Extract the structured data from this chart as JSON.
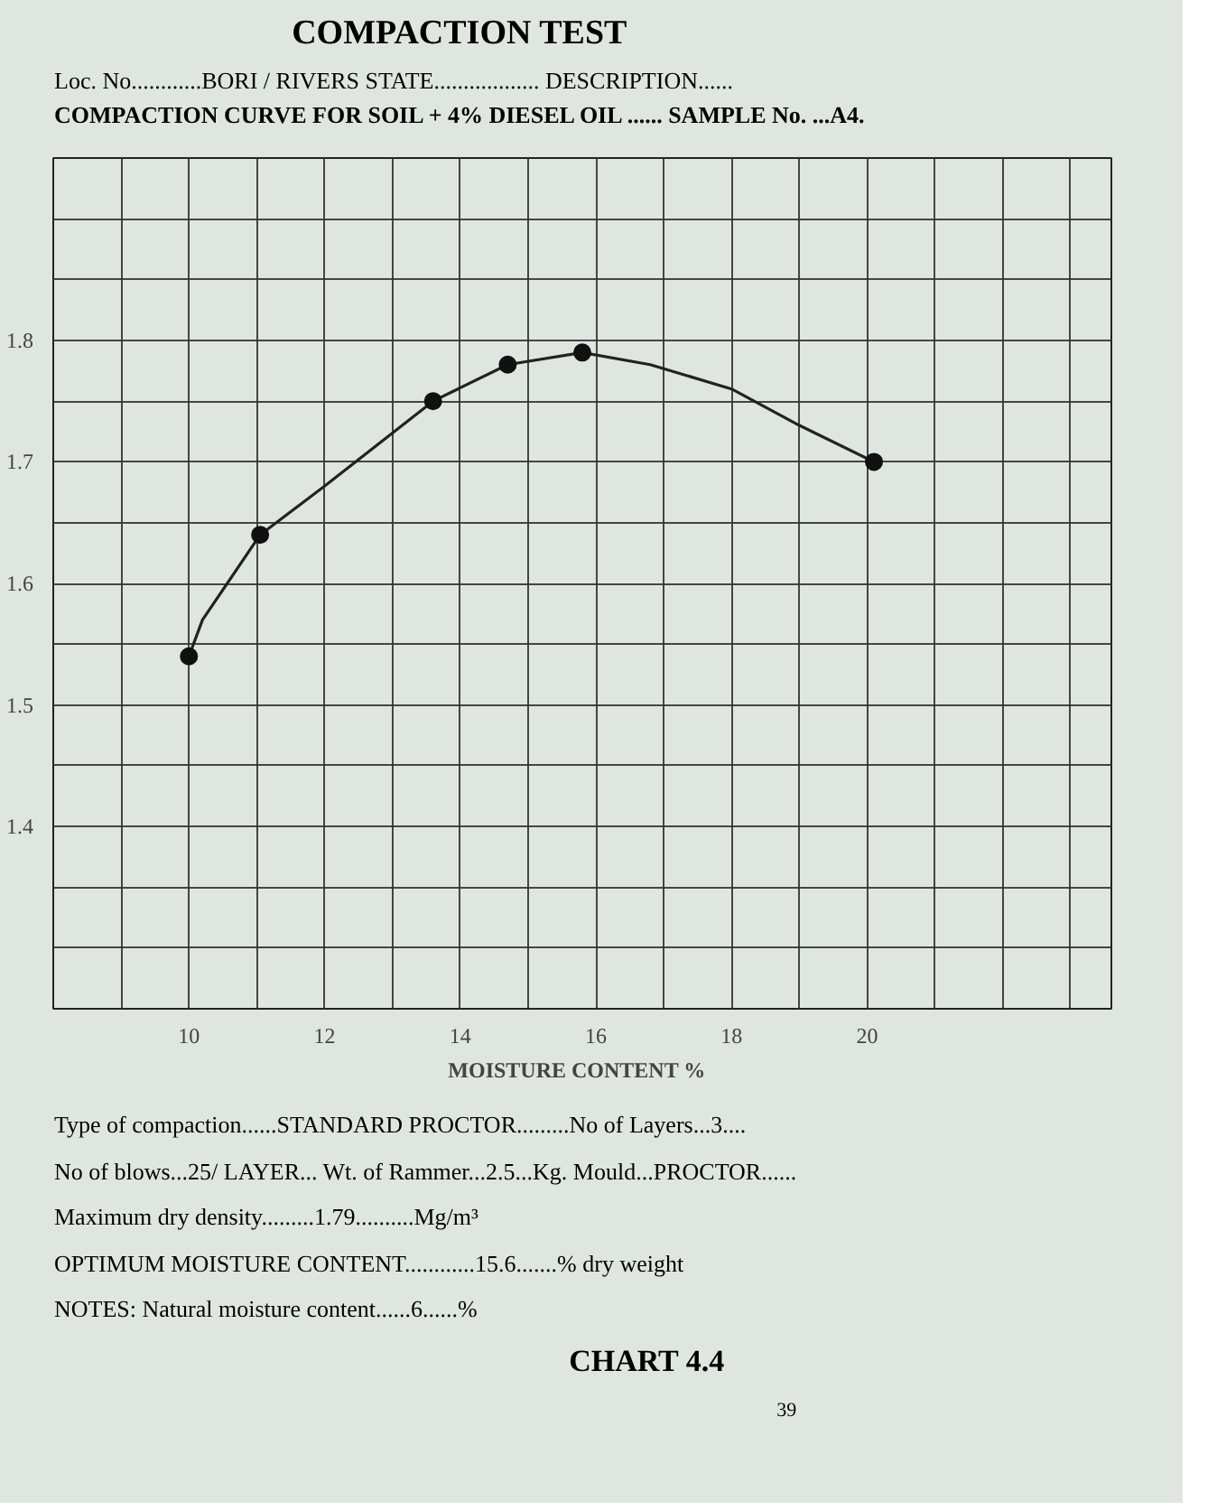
{
  "chart_data": {
    "type": "line",
    "title": "COMPACTION TEST",
    "subtitle": "Loc. No............BORI / RIVERS STATE.................. DESCRIPTION......",
    "xlabel": "MOISTURE CONTENT   %",
    "xlim": [
      8,
      23.6
    ],
    "ylim": [
      1.25,
      1.95
    ],
    "xticks": [
      {
        "value": 9,
        "label": null
      },
      10,
      {
        "value": 11,
        "label": null
      },
      12,
      {
        "value": 13,
        "label": null
      },
      14,
      {
        "value": 15,
        "label": null
      },
      16,
      {
        "value": 17,
        "label": null
      },
      18,
      {
        "value": 19,
        "label": null
      },
      20,
      {
        "value": 21,
        "label": null
      },
      {
        "value": 22,
        "label": null
      },
      {
        "value": 23,
        "label": null
      }
    ],
    "yticks": [
      {
        "value": 1.3,
        "label": null
      },
      {
        "value": 1.35,
        "label": null
      },
      1.4,
      {
        "value": 1.45,
        "label": null
      },
      1.5,
      {
        "value": 1.55,
        "label": null
      },
      1.6,
      {
        "value": 1.65,
        "label": null
      },
      1.7,
      {
        "value": 1.75,
        "label": null
      },
      1.8,
      {
        "value": 1.85,
        "label": null
      },
      {
        "value": 1.9,
        "label": null
      }
    ],
    "grid": true,
    "series": [
      {
        "color": "#222222",
        "line_style": "solid",
        "x": [
          10,
          10.2,
          11.05,
          12,
          13.6,
          14.7,
          15.8,
          16.8,
          18,
          19,
          20.1
        ],
        "values": [
          1.54,
          1.57,
          1.64,
          1.68,
          1.75,
          1.78,
          1.79,
          1.78,
          1.76,
          1.73,
          1.7
        ]
      },
      {
        "type": "scatter",
        "color": "#111111",
        "marker": "circle",
        "x": [
          10,
          11.05,
          13.6,
          14.7,
          15.8,
          20.1
        ],
        "values": [
          1.54,
          1.64,
          1.75,
          1.78,
          1.79,
          1.7
        ]
      }
    ],
    "annotations": [
      "COMPACTION CURVE FOR SOIL + 4% DIESEL OIL ...... SAMPLE No. ...A4.",
      "Type of compaction......STANDARD PROCTOR.........No of Layers...3....",
      "No of blows...25/ LAYER... Wt. of Rammer...2.5...Kg. Mould...PROCTOR......",
      "Maximum dry density.........1.79..........Mg/m³",
      "OPTIMUM MOISTURE CONTENT............15.6.......% dry weight",
      "NOTES:      Natural moisture content......6......%",
      "CHART 4.4",
      "39"
    ]
  }
}
